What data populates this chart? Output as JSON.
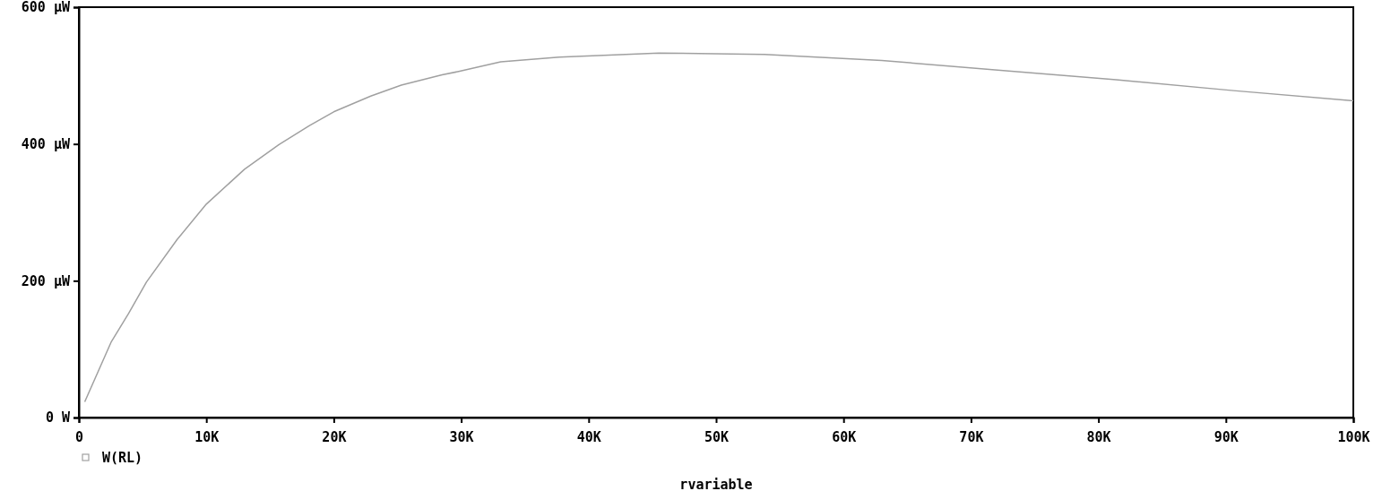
{
  "chart_data": {
    "type": "line",
    "xlabel": "rvariable",
    "x": [
      0.46,
      2.55,
      3.9,
      5.3,
      7.7,
      10,
      13,
      15.7,
      18.1,
      20,
      22.9,
      25.3,
      28.5,
      29.8,
      33.1,
      37.7,
      45.5,
      53.8,
      63,
      72.1,
      81.4,
      90.6,
      100
    ],
    "series": [
      {
        "name": "W(RL)",
        "color": "#a0a0a0",
        "values": [
          23,
          111,
          152,
          198,
          260,
          312,
          363,
          399,
          427,
          447,
          470,
          486,
          501,
          506,
          520,
          527,
          533,
          531,
          522,
          508,
          494,
          478,
          463
        ]
      }
    ],
    "xlim": [
      0,
      100
    ],
    "ylim": [
      0,
      600
    ],
    "xticks": [
      0,
      {
        "value": 10,
        "label": "10K"
      },
      {
        "value": 20,
        "label": "20K"
      },
      {
        "value": 30,
        "label": "30K"
      },
      {
        "value": 40,
        "label": "40K"
      },
      {
        "value": 50,
        "label": "50K"
      },
      {
        "value": 60,
        "label": "60K"
      },
      {
        "value": 70,
        "label": "70K"
      },
      {
        "value": 80,
        "label": "80K"
      },
      {
        "value": 90,
        "label": "90K"
      },
      {
        "value": 100,
        "label": "100K"
      }
    ],
    "yticks": [
      {
        "value": 0,
        "label": "0 W"
      },
      {
        "value": 200,
        "label": "200 µW"
      },
      {
        "value": 400,
        "label": "400 µW"
      },
      {
        "value": 600,
        "label": "600 µW"
      }
    ],
    "legend": "bottom left",
    "marker": "none",
    "line_style": "solid",
    "grid": false
  }
}
